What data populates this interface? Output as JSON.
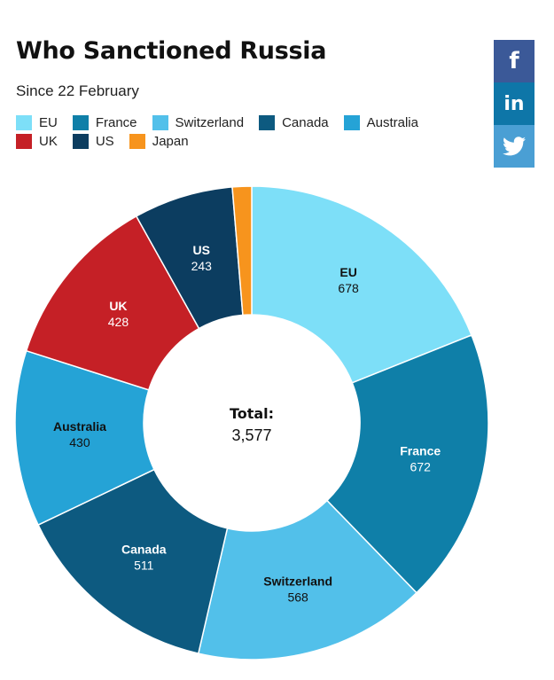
{
  "title": "Who Sanctioned Russia",
  "subtitle": "Since 22 February",
  "share": [
    {
      "name": "facebook",
      "glyph": "f",
      "color": "#3b5998"
    },
    {
      "name": "linkedin",
      "glyph": "in",
      "color": "#0e76a8"
    },
    {
      "name": "twitter",
      "glyph": "",
      "color": "#4a9fd4"
    }
  ],
  "chart_data": {
    "type": "pie",
    "donut": true,
    "center_label": "Total:",
    "center_value": "3,577",
    "legend_placement": "top-left",
    "slices": [
      {
        "label": "EU",
        "value": 678,
        "display": "678",
        "color": "#7ddff8",
        "text_color": "#111111"
      },
      {
        "label": "France",
        "value": 672,
        "display": "672",
        "color": "#0f7fa8",
        "text_color": "#ffffff"
      },
      {
        "label": "Switzerland",
        "value": 568,
        "display": "568",
        "color": "#52c0ea",
        "text_color": "#111111"
      },
      {
        "label": "Canada",
        "value": 511,
        "display": "511",
        "color": "#0d5a80",
        "text_color": "#ffffff"
      },
      {
        "label": "Australia",
        "value": 430,
        "display": "430",
        "color": "#25a3d6",
        "text_color": "#111111"
      },
      {
        "label": "UK",
        "value": 428,
        "display": "428",
        "color": "#c52026",
        "text_color": "#ffffff"
      },
      {
        "label": "US",
        "value": 243,
        "display": "243",
        "color": "#0c3d60",
        "text_color": "#ffffff"
      },
      {
        "label": "Japan",
        "value": 47,
        "display": "",
        "color": "#f7941d",
        "text_color": "#111111"
      }
    ]
  }
}
